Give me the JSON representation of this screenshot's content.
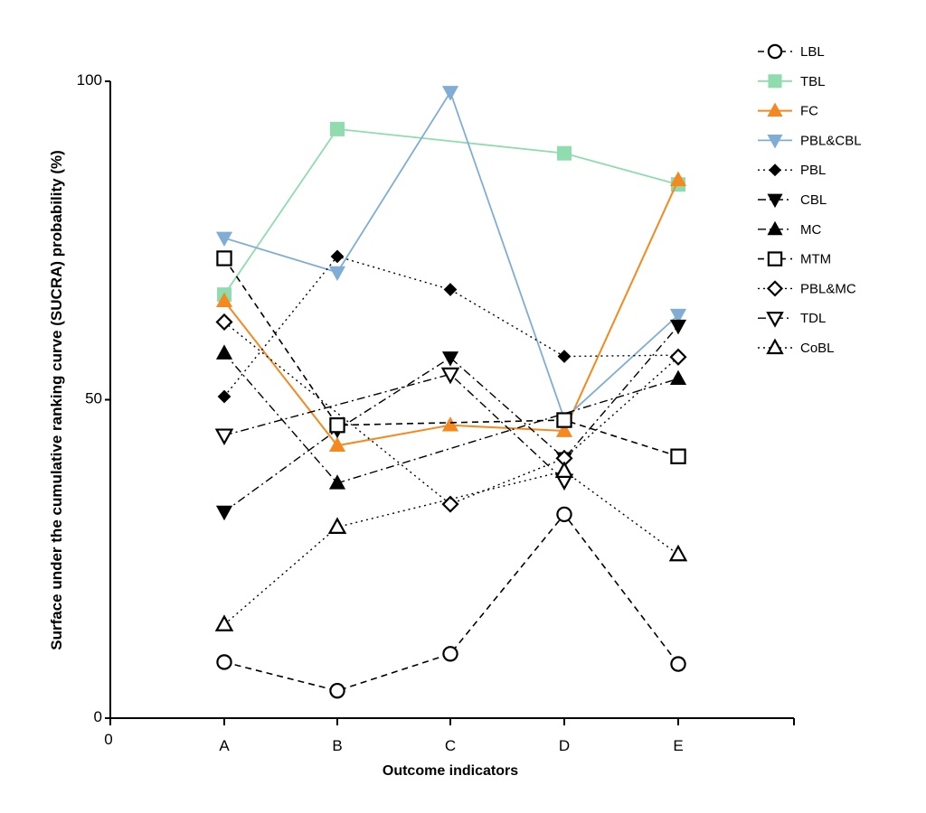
{
  "chart_data": {
    "type": "line",
    "title": "",
    "xlabel": "Outcome indicators",
    "ylabel": "Surface under the cumulative ranking curve (SUCRA) probability (%)",
    "categories": [
      "A",
      "B",
      "C",
      "D",
      "E"
    ],
    "x_origin_label": "0",
    "ylim": [
      0,
      100
    ],
    "yticks": [
      0,
      50,
      100
    ],
    "legend_position": "top-right",
    "series": [
      {
        "name": "LBL",
        "values": [
          8.8,
          4.3,
          10.1,
          32.0,
          8.5
        ],
        "color": "#000000",
        "marker": "circle-open",
        "dash": "dashed",
        "width": 1.6
      },
      {
        "name": "TBL",
        "values": [
          66.5,
          92.5,
          null,
          88.7,
          83.8
        ],
        "color": "#8fdcae",
        "marker": "square-filled",
        "dash": "solid",
        "width": 1.8
      },
      {
        "name": "FC",
        "values": [
          65.5,
          42.8,
          46.0,
          45.1,
          84.5
        ],
        "color": "#f5891f",
        "marker": "triangle-up-filled",
        "dash": "solid",
        "width": 2.0
      },
      {
        "name": "PBL&CBL",
        "values": [
          75.4,
          70.0,
          98.3,
          47.0,
          63.3
        ],
        "color": "#7fadd6",
        "marker": "triangle-down-filled",
        "dash": "solid",
        "width": 1.8
      },
      {
        "name": "PBL",
        "values": [
          50.5,
          72.5,
          67.3,
          56.8,
          57.0
        ],
        "color": "#000000",
        "marker": "diamond-filled",
        "dash": "dotted",
        "width": 1.4
      },
      {
        "name": "CBL",
        "values": [
          32.4,
          45.3,
          56.6,
          40.8,
          61.6
        ],
        "color": "#000000",
        "marker": "triangle-down-filled",
        "dash": "dashdot",
        "width": 1.4
      },
      {
        "name": "MC",
        "values": [
          57.3,
          36.9,
          null,
          null,
          53.3
        ],
        "color": "#000000",
        "marker": "triangle-up-filled",
        "dash": "dashdot",
        "width": 1.4
      },
      {
        "name": "MTM",
        "values": [
          72.2,
          46.0,
          null,
          46.8,
          41.1
        ],
        "color": "#000000",
        "marker": "square-open",
        "dash": "dashed",
        "width": 1.6
      },
      {
        "name": "PBL&MC",
        "values": [
          62.2,
          null,
          33.6,
          40.8,
          56.7
        ],
        "color": "#000000",
        "marker": "diamond-open",
        "dash": "dotted",
        "width": 1.4
      },
      {
        "name": "TDL",
        "values": [
          44.4,
          null,
          54.0,
          37.3,
          null
        ],
        "color": "#000000",
        "marker": "triangle-down-open",
        "dash": "dashdot",
        "width": 1.4
      },
      {
        "name": "CoBL",
        "values": [
          14.7,
          30.0,
          null,
          38.8,
          25.7
        ],
        "color": "#000000",
        "marker": "triangle-up-open",
        "dash": "dotted",
        "width": 1.4
      }
    ]
  }
}
